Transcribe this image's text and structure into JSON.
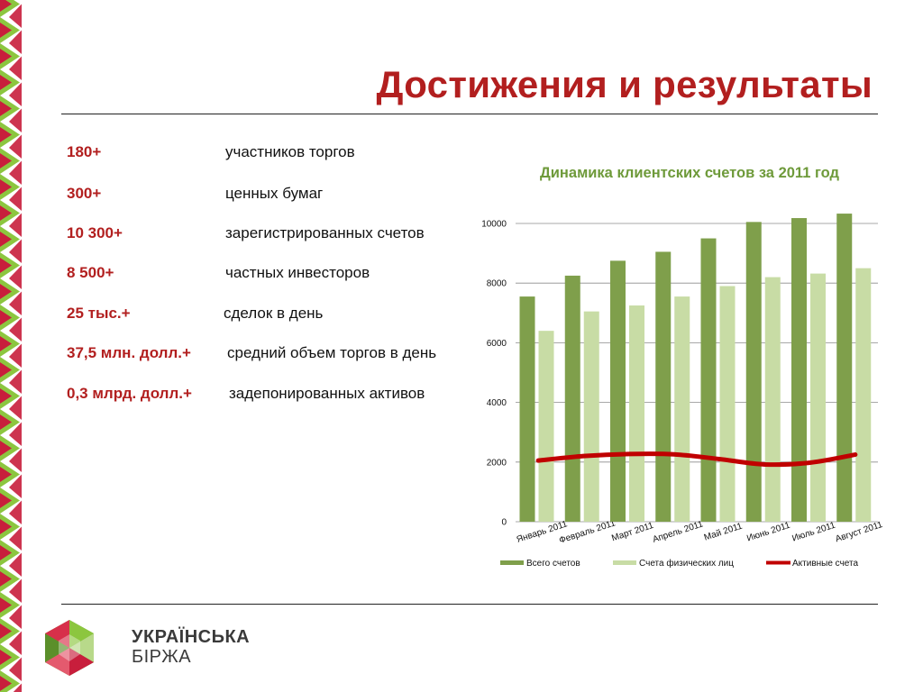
{
  "title": "Достижения и результаты",
  "stats": [
    {
      "value": "180+",
      "label": "участников торгов"
    },
    {
      "value": "300+",
      "label": "ценных бумаг"
    },
    {
      "value": "10 300+",
      "label": "зарегистрированных счетов"
    },
    {
      "value": "8 500+",
      "label": "частных инвесторов"
    },
    {
      "value": "25 тыс.+",
      "label": "сделок в день"
    },
    {
      "value": "37,5 млн. долл.+",
      "label": "средний объем торгов в день"
    },
    {
      "value": "0,3 млрд. долл.+",
      "label": "задепонированных активов"
    }
  ],
  "logo": {
    "line1": "УКРАЇНСЬКА",
    "line2": "БІРЖА"
  },
  "colors": {
    "accent_red": "#b21f1f",
    "title_green": "#6e9a3a",
    "bar_dark": "#7f9f4b",
    "bar_light": "#c8dca5",
    "line_red": "#c00000"
  },
  "chart_data": {
    "type": "bar",
    "title": "Динамика клиентских счетов за 2011 год",
    "categories": [
      "Январь 2011",
      "Февраль 2011",
      "Март 2011",
      "Апрель 2011",
      "Май 2011",
      "Июнь 2011",
      "Июль 2011",
      "Август 2011"
    ],
    "series": [
      {
        "name": "Всего счетов",
        "kind": "bar",
        "color": "#7f9f4b",
        "values": [
          7550,
          8250,
          8750,
          9050,
          9500,
          10050,
          10180,
          10330
        ]
      },
      {
        "name": "Счета физических лиц",
        "kind": "bar",
        "color": "#c8dca5",
        "values": [
          6400,
          7050,
          7250,
          7550,
          7900,
          8200,
          8320,
          8500
        ]
      },
      {
        "name": "Активные счета",
        "kind": "line",
        "color": "#c00000",
        "values": [
          2050,
          2200,
          2270,
          2260,
          2100,
          1920,
          1980,
          2250
        ]
      }
    ],
    "ylim": [
      0,
      10000
    ],
    "yticks": [
      0,
      2000,
      4000,
      6000,
      8000,
      10000
    ],
    "grid": true,
    "legend": "bottom"
  }
}
